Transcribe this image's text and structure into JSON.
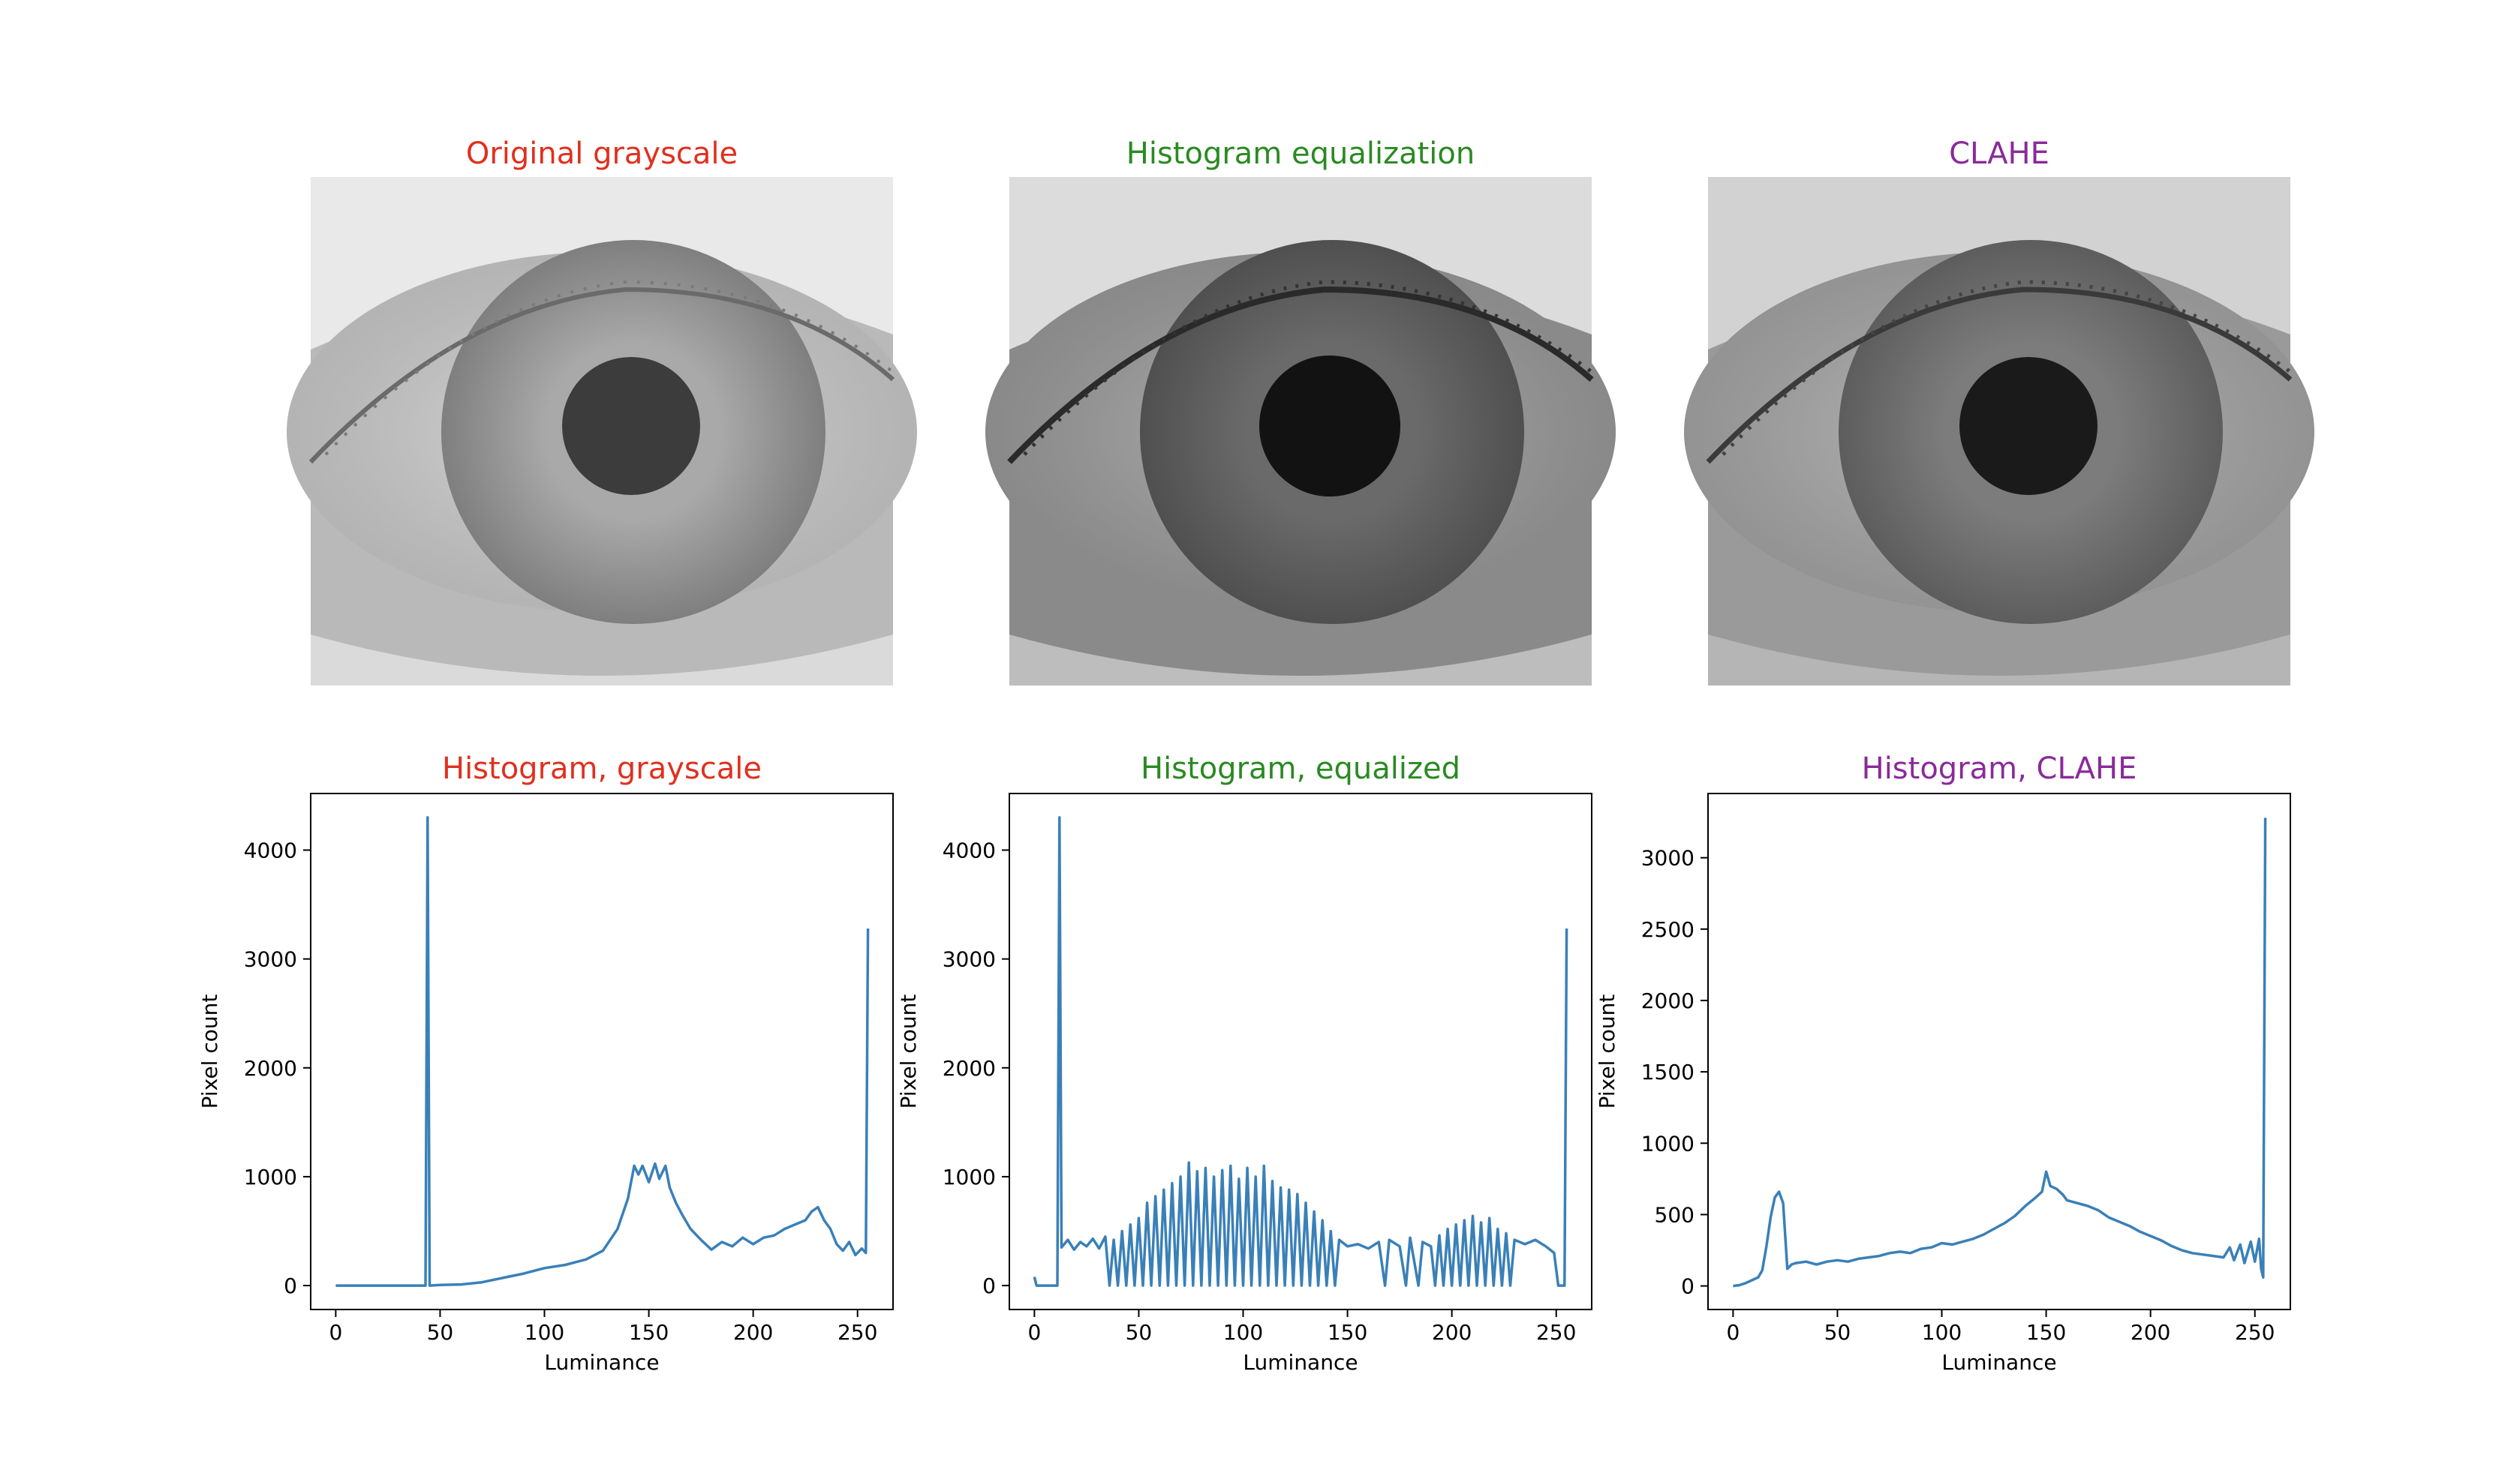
{
  "figure": {
    "panels": [
      {
        "title": "Original grayscale",
        "color": "#e0301e",
        "variant": "gray"
      },
      {
        "title": "Histogram equalization",
        "color": "#2a8a22",
        "variant": "equalized"
      },
      {
        "title": "CLAHE",
        "color": "#8a2a9a",
        "variant": "clahe"
      }
    ]
  },
  "chart_data": [
    {
      "type": "line",
      "title": "Histogram, grayscale",
      "title_color": "#e0301e",
      "xlabel": "Luminance",
      "ylabel": "Pixel count",
      "xlim": [
        -12,
        267
      ],
      "ylim": [
        -220,
        4520
      ],
      "xticks": [
        0,
        50,
        100,
        150,
        200,
        250
      ],
      "yticks": [
        0,
        1000,
        2000,
        3000,
        4000
      ],
      "line_color": "#3a80b8",
      "series": [
        {
          "points": [
            [
              0,
              0
            ],
            [
              10,
              0
            ],
            [
              20,
              0
            ],
            [
              30,
              0
            ],
            [
              40,
              0
            ],
            [
              43,
              0
            ],
            [
              44,
              4300
            ],
            [
              45,
              0
            ],
            [
              50,
              5
            ],
            [
              60,
              10
            ],
            [
              70,
              30
            ],
            [
              80,
              70
            ],
            [
              90,
              110
            ],
            [
              100,
              160
            ],
            [
              110,
              190
            ],
            [
              120,
              240
            ],
            [
              128,
              320
            ],
            [
              135,
              520
            ],
            [
              140,
              800
            ],
            [
              143,
              1100
            ],
            [
              145,
              1020
            ],
            [
              147,
              1100
            ],
            [
              150,
              950
            ],
            [
              153,
              1120
            ],
            [
              155,
              980
            ],
            [
              158,
              1100
            ],
            [
              160,
              900
            ],
            [
              163,
              760
            ],
            [
              166,
              650
            ],
            [
              170,
              520
            ],
            [
              175,
              420
            ],
            [
              180,
              330
            ],
            [
              185,
              400
            ],
            [
              190,
              360
            ],
            [
              195,
              440
            ],
            [
              200,
              380
            ],
            [
              205,
              440
            ],
            [
              210,
              460
            ],
            [
              215,
              520
            ],
            [
              220,
              560
            ],
            [
              225,
              600
            ],
            [
              228,
              680
            ],
            [
              231,
              720
            ],
            [
              234,
              600
            ],
            [
              237,
              520
            ],
            [
              240,
              380
            ],
            [
              243,
              320
            ],
            [
              246,
              400
            ],
            [
              249,
              280
            ],
            [
              252,
              340
            ],
            [
              254,
              300
            ],
            [
              255,
              3280
            ]
          ]
        }
      ]
    },
    {
      "type": "line",
      "title": "Histogram, equalized",
      "title_color": "#2a8a22",
      "xlabel": "Luminance",
      "ylabel": "Pixel count",
      "xlim": [
        -12,
        267
      ],
      "ylim": [
        -220,
        4520
      ],
      "xticks": [
        0,
        50,
        100,
        150,
        200,
        250
      ],
      "yticks": [
        0,
        1000,
        2000,
        3000,
        4000
      ],
      "line_color": "#3a80b8",
      "series": [
        {
          "points": [
            [
              0,
              80
            ],
            [
              1,
              0
            ],
            [
              10,
              0
            ],
            [
              11,
              0
            ],
            [
              12,
              4300
            ],
            [
              13,
              350
            ],
            [
              16,
              420
            ],
            [
              19,
              330
            ],
            [
              22,
              400
            ],
            [
              25,
              360
            ],
            [
              28,
              430
            ],
            [
              31,
              340
            ],
            [
              34,
              450
            ],
            [
              36,
              0
            ],
            [
              38,
              420
            ],
            [
              40,
              0
            ],
            [
              42,
              500
            ],
            [
              44,
              0
            ],
            [
              46,
              560
            ],
            [
              48,
              0
            ],
            [
              50,
              620
            ],
            [
              52,
              0
            ],
            [
              54,
              760
            ],
            [
              56,
              0
            ],
            [
              58,
              820
            ],
            [
              60,
              0
            ],
            [
              62,
              880
            ],
            [
              64,
              0
            ],
            [
              66,
              940
            ],
            [
              68,
              0
            ],
            [
              70,
              1000
            ],
            [
              72,
              0
            ],
            [
              74,
              1130
            ],
            [
              76,
              0
            ],
            [
              78,
              1050
            ],
            [
              80,
              0
            ],
            [
              82,
              1080
            ],
            [
              84,
              0
            ],
            [
              86,
              1000
            ],
            [
              88,
              0
            ],
            [
              90,
              1060
            ],
            [
              92,
              0
            ],
            [
              94,
              1100
            ],
            [
              96,
              0
            ],
            [
              98,
              980
            ],
            [
              100,
              0
            ],
            [
              102,
              1080
            ],
            [
              104,
              0
            ],
            [
              106,
              1000
            ],
            [
              108,
              0
            ],
            [
              110,
              1100
            ],
            [
              112,
              0
            ],
            [
              114,
              960
            ],
            [
              116,
              0
            ],
            [
              118,
              900
            ],
            [
              120,
              0
            ],
            [
              122,
              880
            ],
            [
              124,
              0
            ],
            [
              126,
              840
            ],
            [
              128,
              0
            ],
            [
              130,
              760
            ],
            [
              132,
              0
            ],
            [
              134,
              680
            ],
            [
              136,
              0
            ],
            [
              138,
              600
            ],
            [
              140,
              0
            ],
            [
              142,
              500
            ],
            [
              144,
              0
            ],
            [
              146,
              420
            ],
            [
              150,
              360
            ],
            [
              155,
              380
            ],
            [
              160,
              340
            ],
            [
              165,
              400
            ],
            [
              168,
              0
            ],
            [
              170,
              420
            ],
            [
              175,
              360
            ],
            [
              178,
              0
            ],
            [
              180,
              440
            ],
            [
              184,
              0
            ],
            [
              186,
              400
            ],
            [
              190,
              360
            ],
            [
              192,
              0
            ],
            [
              194,
              460
            ],
            [
              196,
              0
            ],
            [
              198,
              520
            ],
            [
              200,
              0
            ],
            [
              202,
              560
            ],
            [
              204,
              0
            ],
            [
              206,
              600
            ],
            [
              208,
              0
            ],
            [
              210,
              640
            ],
            [
              212,
              0
            ],
            [
              214,
              580
            ],
            [
              216,
              0
            ],
            [
              218,
              620
            ],
            [
              220,
              0
            ],
            [
              222,
              520
            ],
            [
              224,
              0
            ],
            [
              226,
              480
            ],
            [
              228,
              0
            ],
            [
              230,
              420
            ],
            [
              235,
              380
            ],
            [
              240,
              420
            ],
            [
              245,
              360
            ],
            [
              249,
              300
            ],
            [
              251,
              0
            ],
            [
              254,
              0
            ],
            [
              255,
              3280
            ]
          ]
        }
      ]
    },
    {
      "type": "line",
      "title": "Histogram, CLAHE",
      "title_color": "#8a2a9a",
      "xlabel": "Luminance",
      "ylabel": "Pixel count",
      "xlim": [
        -12,
        267
      ],
      "ylim": [
        -165,
        3450
      ],
      "xticks": [
        0,
        50,
        100,
        150,
        200,
        250
      ],
      "yticks": [
        0,
        500,
        1000,
        1500,
        2000,
        2500,
        3000
      ],
      "line_color": "#3a80b8",
      "series": [
        {
          "points": [
            [
              0,
              0
            ],
            [
              3,
              5
            ],
            [
              6,
              20
            ],
            [
              9,
              40
            ],
            [
              12,
              60
            ],
            [
              14,
              110
            ],
            [
              16,
              280
            ],
            [
              18,
              480
            ],
            [
              20,
              620
            ],
            [
              22,
              660
            ],
            [
              24,
              580
            ],
            [
              26,
              120
            ],
            [
              28,
              150
            ],
            [
              30,
              160
            ],
            [
              35,
              170
            ],
            [
              40,
              150
            ],
            [
              45,
              170
            ],
            [
              50,
              180
            ],
            [
              55,
              170
            ],
            [
              60,
              190
            ],
            [
              65,
              200
            ],
            [
              70,
              210
            ],
            [
              75,
              230
            ],
            [
              80,
              240
            ],
            [
              85,
              230
            ],
            [
              90,
              260
            ],
            [
              95,
              270
            ],
            [
              100,
              300
            ],
            [
              105,
              290
            ],
            [
              110,
              310
            ],
            [
              115,
              330
            ],
            [
              120,
              360
            ],
            [
              125,
              400
            ],
            [
              130,
              440
            ],
            [
              135,
              490
            ],
            [
              140,
              560
            ],
            [
              145,
              620
            ],
            [
              148,
              660
            ],
            [
              150,
              800
            ],
            [
              152,
              700
            ],
            [
              155,
              680
            ],
            [
              158,
              640
            ],
            [
              160,
              600
            ],
            [
              165,
              580
            ],
            [
              170,
              560
            ],
            [
              175,
              530
            ],
            [
              180,
              480
            ],
            [
              185,
              450
            ],
            [
              190,
              420
            ],
            [
              195,
              380
            ],
            [
              200,
              350
            ],
            [
              205,
              320
            ],
            [
              210,
              280
            ],
            [
              215,
              250
            ],
            [
              220,
              230
            ],
            [
              225,
              220
            ],
            [
              230,
              210
            ],
            [
              235,
              200
            ],
            [
              238,
              270
            ],
            [
              240,
              180
            ],
            [
              243,
              290
            ],
            [
              245,
              160
            ],
            [
              248,
              310
            ],
            [
              250,
              170
            ],
            [
              252,
              330
            ],
            [
              253,
              120
            ],
            [
              254,
              60
            ],
            [
              255,
              3280
            ]
          ]
        }
      ]
    }
  ]
}
